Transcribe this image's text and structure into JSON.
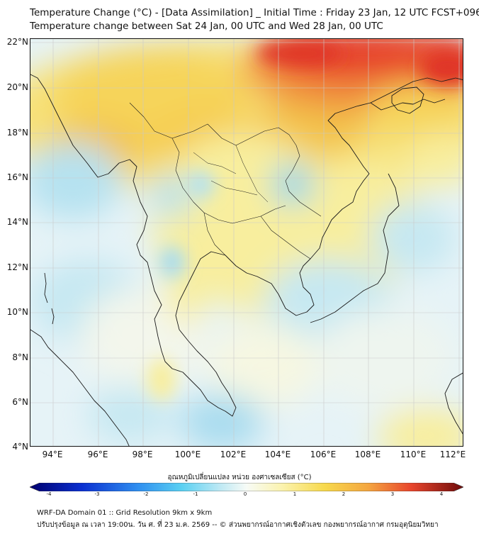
{
  "header": {
    "title_line1": "Temperature Change (°C) - [Data Assimilation] _ Initial Time : Friday 23 Jan, 12 UTC FCST+096",
    "title_line2": "Temperature change between Sat 24 Jan, 00 UTC and Wed 28 Jan, 00 UTC"
  },
  "map": {
    "lat_labels": [
      "22°N",
      "20°N",
      "18°N",
      "16°N",
      "14°N",
      "12°N",
      "10°N",
      "8°N",
      "6°N",
      "4°N"
    ],
    "lon_labels": [
      "94°E",
      "96°E",
      "98°E",
      "100°E",
      "102°E",
      "104°E",
      "106°E",
      "108°E",
      "110°E",
      "112°E"
    ],
    "lat_range": [
      4,
      22
    ],
    "lon_range": [
      93,
      112.2
    ],
    "colors": {
      "background_cool": "#d9ecf5",
      "coastline": "#1a1a1a"
    }
  },
  "colorbar": {
    "title": "อุณหภูมิเปลี่ยนแปลง หน่วย องศาเซลเซียส (°C)",
    "ticks": [
      "-4",
      "-3",
      "-2",
      "-1",
      "0",
      "1",
      "2",
      "3",
      "4"
    ],
    "min": -4,
    "max": 4
  },
  "footer": {
    "line1": "WRF-DA Domain 01 :: Grid Resolution 9km x 9km",
    "line2": "ปรับปรุงข้อมูล ณ เวลา 19:00น. วัน ศ. ที่ 23 ม.ค. 2569 -- © ส่วนพยากรณ์อากาศเชิงตัวเลข กองพยากรณ์อากาศ กรมอุตุนิยมวิทยา"
  }
}
